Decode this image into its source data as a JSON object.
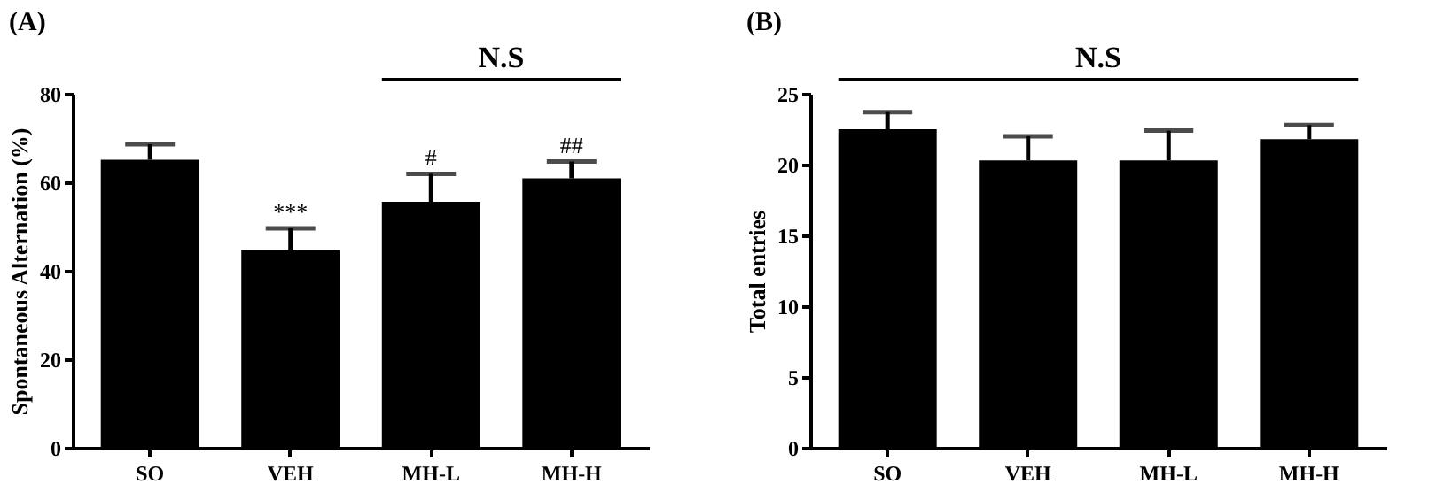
{
  "chart_data": [
    {
      "type": "bar",
      "title": "(A)",
      "ylabel": "Spontaneous Alternation (%)",
      "categories": [
        "SO",
        "VEH",
        "MH-L",
        "MH-H"
      ],
      "color": "#000000",
      "grid": false,
      "values": [
        65.1,
        44.6,
        55.6,
        60.9
      ],
      "errors": [
        [
          65.1,
          68.6
        ],
        [
          44.6,
          49.6
        ],
        [
          55.6,
          61.9
        ],
        [
          60.9,
          64.7
        ]
      ],
      "ylim": [
        0,
        80
      ],
      "yticks": [
        0,
        20,
        40,
        60,
        80
      ],
      "annotations": [
        {
          "text": "***",
          "x": "VEH",
          "y": 49.6
        },
        {
          "text": "#",
          "x": "MH-L",
          "y": 61.9
        },
        {
          "text": "##",
          "x": "MH-H",
          "y": 64.7
        },
        "N.S"
      ]
    },
    {
      "type": "bar",
      "title": "(B)",
      "ylabel": "Total entries",
      "categories": [
        "SO",
        "VEH",
        "MH-L",
        "MH-H"
      ],
      "color": "#000000",
      "grid": false,
      "values": [
        22.5,
        20.3,
        20.3,
        21.8
      ],
      "errors": [
        [
          22.5,
          23.7
        ],
        [
          20.3,
          22.0
        ],
        [
          20.3,
          22.4
        ],
        [
          21.8,
          22.8
        ]
      ],
      "ylim": [
        0,
        25
      ],
      "yticks": [
        0,
        5,
        10,
        15,
        20,
        25
      ],
      "annotations": [
        "N.S"
      ]
    }
  ]
}
